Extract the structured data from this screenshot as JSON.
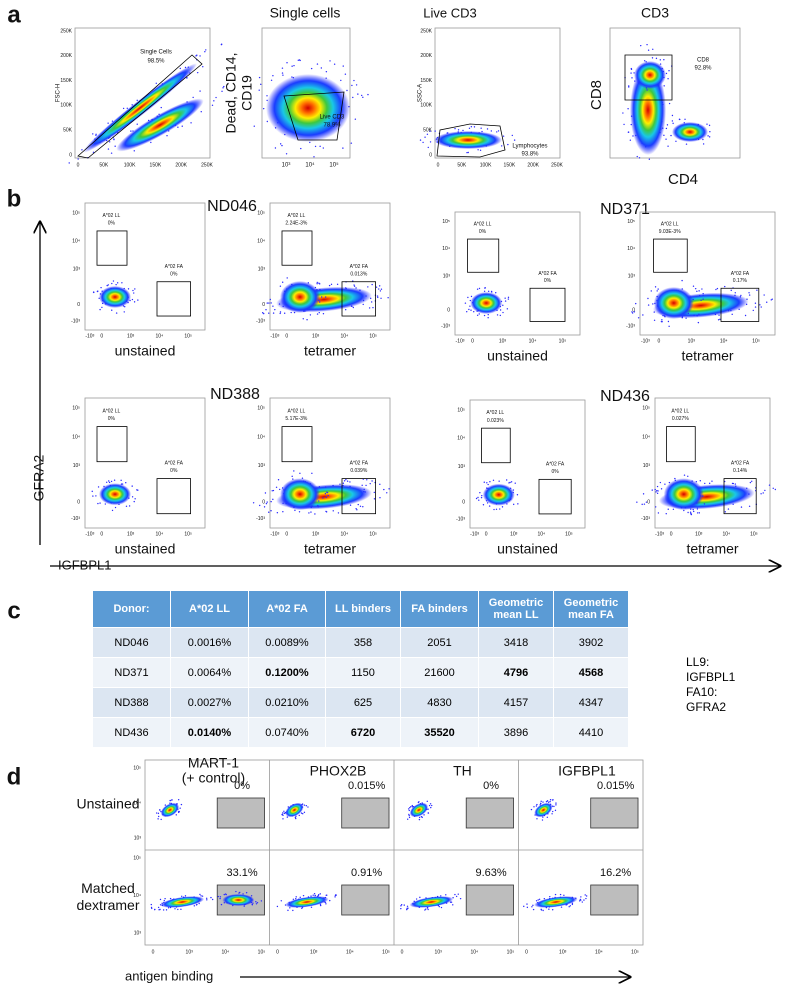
{
  "axis_ticks": {
    "linear": [
      "0",
      "50K",
      "100K",
      "150K",
      "200K",
      "250K"
    ],
    "log": [
      "-10³",
      "0",
      "10³",
      "10⁴",
      "10⁵"
    ]
  },
  "panel_a": {
    "label": "a",
    "plots": [
      {
        "y_label": [
          "FSC-H"
        ],
        "gate": "Single Cells",
        "gate_value": "98.5%"
      },
      {
        "title": "Single cells",
        "y_label": [
          "Dead, CD14,",
          "CD19"
        ],
        "gate": "Live CD3",
        "gate_value": "78.9%"
      },
      {
        "title": "Live CD3",
        "y_label": [
          "SSC-A"
        ],
        "gate": "Lymphocytes",
        "gate_value": "93.8%"
      },
      {
        "title": "CD3",
        "y_label": [
          "CD8"
        ],
        "x_label": "CD4",
        "gate": "CD8",
        "gate_value": "92.8%"
      }
    ]
  },
  "panel_b": {
    "label": "b",
    "y_axis": "GFRA2",
    "x_axis": "IGFBPL1",
    "ll_gate": "A*02 LL",
    "fa_gate": "A*02 FA",
    "donors": [
      {
        "name": "ND046",
        "plots": [
          {
            "condition": "unstained",
            "ll_value": "0%",
            "fa_value": "0%"
          },
          {
            "condition": "tetramer",
            "ll_value": "2.24E-3%",
            "fa_value": "0.013%"
          }
        ]
      },
      {
        "name": "ND371",
        "plots": [
          {
            "condition": "unstained",
            "ll_value": "0%",
            "fa_value": "0%"
          },
          {
            "condition": "tetramer",
            "ll_value": "9.03E-3%",
            "fa_value": "0.17%"
          }
        ]
      },
      {
        "name": "ND388",
        "plots": [
          {
            "condition": "unstained",
            "ll_value": "0%",
            "fa_value": "0%"
          },
          {
            "condition": "tetramer",
            "ll_value": "5.17E-3%",
            "fa_value": "0.039%"
          }
        ]
      },
      {
        "name": "ND436",
        "plots": [
          {
            "condition": "unstained",
            "ll_value": "0.023%",
            "fa_value": "0%"
          },
          {
            "condition": "tetramer",
            "ll_value": "0.027%",
            "fa_value": "0.14%"
          }
        ]
      }
    ]
  },
  "panel_c": {
    "label": "c",
    "table": {
      "header": [
        "Donor:",
        "A*02 LL",
        "A*02 FA",
        "LL binders",
        "FA binders",
        "Geometric mean LL",
        "Geometric mean FA"
      ],
      "rows": [
        [
          "ND046",
          "0.0016%",
          "0.0089%",
          358,
          2051,
          3418,
          3902
        ],
        [
          "ND371",
          "0.0064%",
          "0.1200%",
          1150,
          21600,
          4796,
          4568
        ],
        [
          "ND388",
          "0.0027%",
          "0.0210%",
          625,
          4830,
          4157,
          4347
        ],
        [
          "ND436",
          "0.0140%",
          "0.0740%",
          6720,
          35520,
          3896,
          4410
        ]
      ]
    },
    "note": [
      "LL9:",
      "IGFBPL1",
      "FA10:",
      "GFRA2"
    ]
  },
  "panel_d": {
    "label": "d",
    "x_axis": "antigen binding",
    "columns": [
      [
        "MART-1",
        "(+ control)"
      ],
      [
        "PHOX2B"
      ],
      [
        "TH"
      ],
      [
        "IGFBPL1"
      ]
    ],
    "rows": [
      {
        "label": [
          "Unstained"
        ],
        "values": [
          "0%",
          "0.015%",
          "0%",
          "0.015%"
        ]
      },
      {
        "label": [
          "Matched",
          "dextramer"
        ],
        "values": [
          "33.1%",
          "0.91%",
          "9.63%",
          "16.2%"
        ]
      }
    ]
  }
}
